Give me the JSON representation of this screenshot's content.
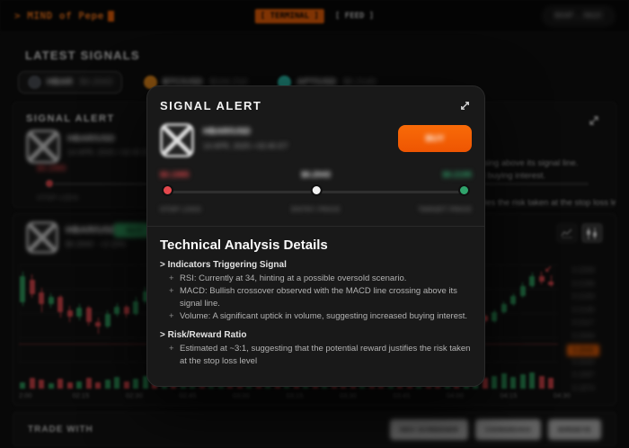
{
  "topbar": {
    "logo": "> MIND of Pepe",
    "tab_terminal": "[ TERMINAL ]",
    "tab_feed": "[ FEED ]",
    "wallet": "0X4F..9A2C"
  },
  "page": {
    "title": "LATEST SIGNALS"
  },
  "token_tabs": [
    {
      "ticker": "HBAR",
      "price": "$0.2043",
      "color": "#4b4f56",
      "selected": true
    },
    {
      "ticker": "BTC/USD",
      "price": "$104,210",
      "color": "#f7931a",
      "selected": false
    },
    {
      "ticker": "APT/USD",
      "price": "$5.2140",
      "color": "#2dd4bf",
      "selected": false
    }
  ],
  "signal_card": {
    "title": "SIGNAL ALERT",
    "token": {
      "name": "HBAR/USD",
      "date": "14 APR, 2025 • 02:45 ET"
    },
    "buy_label": "BUY",
    "slider": {
      "points": [
        {
          "price": "$0.1985",
          "label": "STOP LOSS",
          "color": "#e5484d"
        },
        {
          "price": "$0.2043",
          "label": "ENTRY PRICE",
          "color": "#f2f2f2"
        },
        {
          "price": "$0.2195",
          "label": "TARGET PRICE",
          "color": "#30a46c"
        }
      ]
    },
    "analysis": {
      "heading": "Technical Analysis Details",
      "sections": [
        {
          "title": "> Indicators Triggering Signal",
          "bullets": [
            "RSI: Currently at 34, hinting at a possible oversold scenario.",
            "MACD: Bullish crossover observed with the MACD line crossing above its signal line.",
            "Volume: A significant uptick in volume, suggesting increased buying interest."
          ]
        },
        {
          "title": "> Risk/Reward Ratio",
          "bullets": [
            "Estimated at ~3:1, suggesting that the potential reward justifies the risk taken at the stop loss level"
          ]
        }
      ]
    }
  },
  "chart_card": {
    "token_name": "HBAR/USD",
    "badge": "BUY",
    "sub": "$0.2043 · +2.15%",
    "time_axis": [
      "2:00",
      "02:15",
      "02:30",
      "02:45",
      "03:00",
      "03:15",
      "03:30",
      "03:45",
      "04:00",
      "04:15",
      "04:30"
    ],
    "price_axis": [
      "0.2209",
      "0.2186",
      "0.2163",
      "0.2140",
      "0.2117",
      "0.2094",
      "0.2043",
      "0.2020",
      "0.1997",
      "0.1974"
    ],
    "current_index": 6,
    "candles": [
      [
        0.62,
        0.88,
        0.93,
        0.58
      ],
      [
        0.85,
        0.7,
        0.9,
        0.66
      ],
      [
        0.72,
        0.6,
        0.76,
        0.52
      ],
      [
        0.6,
        0.67,
        0.71,
        0.56
      ],
      [
        0.67,
        0.52,
        0.69,
        0.46
      ],
      [
        0.54,
        0.47,
        0.58,
        0.42
      ],
      [
        0.47,
        0.56,
        0.6,
        0.44
      ],
      [
        0.56,
        0.42,
        0.58,
        0.38
      ],
      [
        0.42,
        0.37,
        0.46,
        0.3
      ],
      [
        0.37,
        0.5,
        0.54,
        0.35
      ],
      [
        0.5,
        0.57,
        0.61,
        0.47
      ],
      [
        0.57,
        0.5,
        0.59,
        0.46
      ],
      [
        0.5,
        0.63,
        0.67,
        0.48
      ],
      [
        0.63,
        0.73,
        0.77,
        0.6
      ],
      [
        0.73,
        0.64,
        0.76,
        0.6
      ],
      [
        0.64,
        0.7,
        0.74,
        0.61
      ],
      [
        0.7,
        0.58,
        0.72,
        0.54
      ],
      [
        0.58,
        0.66,
        0.7,
        0.55
      ],
      [
        0.66,
        0.74,
        0.78,
        0.63
      ],
      [
        0.74,
        0.68,
        0.77,
        0.64
      ],
      [
        0.68,
        0.76,
        0.8,
        0.65
      ],
      [
        0.76,
        0.82,
        0.86,
        0.73
      ],
      [
        0.82,
        0.7,
        0.84,
        0.66
      ],
      [
        0.7,
        0.48,
        0.72,
        0.44
      ],
      [
        0.48,
        0.55,
        0.59,
        0.45
      ],
      [
        0.55,
        0.49,
        0.57,
        0.44
      ],
      [
        0.49,
        0.58,
        0.62,
        0.47
      ],
      [
        0.58,
        0.52,
        0.6,
        0.48
      ],
      [
        0.52,
        0.6,
        0.64,
        0.5
      ],
      [
        0.6,
        0.54,
        0.62,
        0.5
      ],
      [
        0.54,
        0.62,
        0.66,
        0.52
      ],
      [
        0.62,
        0.56,
        0.64,
        0.52
      ],
      [
        0.56,
        0.64,
        0.68,
        0.54
      ],
      [
        0.64,
        0.58,
        0.66,
        0.54
      ],
      [
        0.58,
        0.5,
        0.6,
        0.46
      ],
      [
        0.5,
        0.44,
        0.52,
        0.4
      ],
      [
        0.44,
        0.52,
        0.56,
        0.42
      ],
      [
        0.52,
        0.46,
        0.54,
        0.42
      ],
      [
        0.46,
        0.4,
        0.48,
        0.36
      ],
      [
        0.4,
        0.48,
        0.52,
        0.38
      ],
      [
        0.48,
        0.42,
        0.5,
        0.38
      ],
      [
        0.42,
        0.36,
        0.44,
        0.32
      ],
      [
        0.36,
        0.44,
        0.48,
        0.34
      ],
      [
        0.44,
        0.38,
        0.46,
        0.34
      ],
      [
        0.38,
        0.32,
        0.4,
        0.28
      ],
      [
        0.32,
        0.4,
        0.44,
        0.3
      ],
      [
        0.4,
        0.35,
        0.42,
        0.31
      ],
      [
        0.35,
        0.42,
        0.46,
        0.33
      ],
      [
        0.42,
        0.48,
        0.51,
        0.39
      ],
      [
        0.48,
        0.43,
        0.5,
        0.4
      ],
      [
        0.43,
        0.52,
        0.55,
        0.41
      ],
      [
        0.52,
        0.6,
        0.63,
        0.5
      ],
      [
        0.6,
        0.68,
        0.71,
        0.58
      ],
      [
        0.68,
        0.78,
        0.82,
        0.66
      ],
      [
        0.78,
        0.88,
        0.92,
        0.76
      ],
      [
        0.88,
        0.83,
        0.93,
        0.8
      ],
      [
        0.83,
        0.79,
        0.89,
        0.77
      ]
    ],
    "volumes": [
      0.3,
      0.5,
      0.4,
      0.25,
      0.45,
      0.3,
      0.35,
      0.5,
      0.3,
      0.4,
      0.55,
      0.35,
      0.45,
      0.6,
      0.4,
      0.5,
      1.0,
      0.45,
      0.55,
      0.4,
      0.5,
      0.6,
      0.45,
      0.75,
      0.5,
      0.4,
      0.55,
      0.45,
      0.5,
      0.4,
      0.6,
      0.45,
      0.5,
      0.4,
      0.45,
      0.35,
      0.5,
      0.4,
      0.45,
      0.55,
      0.4,
      0.35,
      0.5,
      0.4,
      0.45,
      0.6,
      0.5,
      0.55,
      0.65,
      0.5,
      0.6,
      0.7,
      0.55,
      0.65,
      0.75,
      0.6,
      0.5
    ]
  },
  "footer": {
    "label": "TRADE WITH",
    "buttons": [
      "DEX SCREENER",
      "COINGECKO",
      "BIRDEYE"
    ]
  },
  "colors": {
    "accent": "#f26105",
    "up": "#2ea05f",
    "down": "#e0464c",
    "stop": "#e5484d",
    "entry": "#f2f2f2",
    "target": "#30a46c"
  }
}
